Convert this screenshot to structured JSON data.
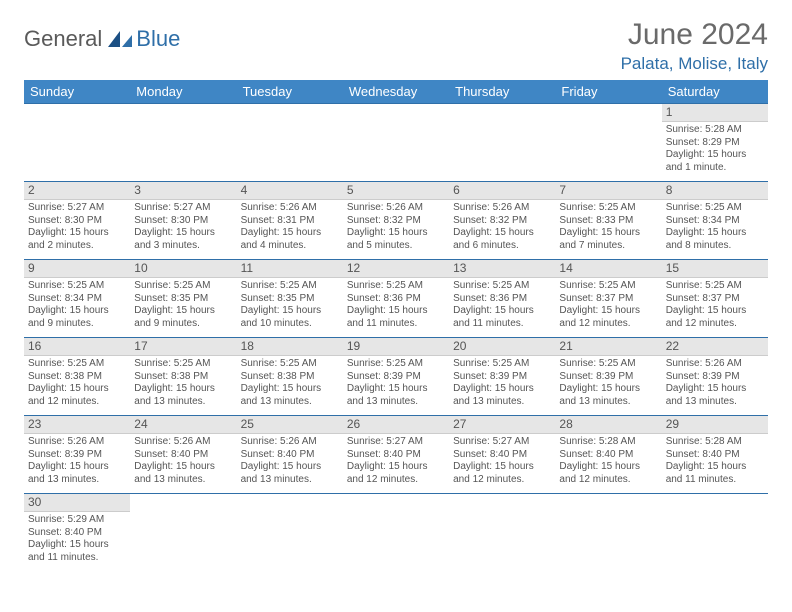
{
  "logo": {
    "text1": "General",
    "text2": "Blue"
  },
  "title": "June 2024",
  "location": "Palata, Molise, Italy",
  "colors": {
    "header_bg": "#3f86c5",
    "header_text": "#ffffff",
    "date_bg": "#e6e6e6",
    "row_border": "#2f6fa8",
    "accent": "#2f6fa8",
    "body_text": "#555555"
  },
  "day_headers": [
    "Sunday",
    "Monday",
    "Tuesday",
    "Wednesday",
    "Thursday",
    "Friday",
    "Saturday"
  ],
  "weeks": [
    [
      null,
      null,
      null,
      null,
      null,
      null,
      {
        "d": "1",
        "sr": "Sunrise: 5:28 AM",
        "ss": "Sunset: 8:29 PM",
        "dl": "Daylight: 15 hours and 1 minute."
      }
    ],
    [
      {
        "d": "2",
        "sr": "Sunrise: 5:27 AM",
        "ss": "Sunset: 8:30 PM",
        "dl": "Daylight: 15 hours and 2 minutes."
      },
      {
        "d": "3",
        "sr": "Sunrise: 5:27 AM",
        "ss": "Sunset: 8:30 PM",
        "dl": "Daylight: 15 hours and 3 minutes."
      },
      {
        "d": "4",
        "sr": "Sunrise: 5:26 AM",
        "ss": "Sunset: 8:31 PM",
        "dl": "Daylight: 15 hours and 4 minutes."
      },
      {
        "d": "5",
        "sr": "Sunrise: 5:26 AM",
        "ss": "Sunset: 8:32 PM",
        "dl": "Daylight: 15 hours and 5 minutes."
      },
      {
        "d": "6",
        "sr": "Sunrise: 5:26 AM",
        "ss": "Sunset: 8:32 PM",
        "dl": "Daylight: 15 hours and 6 minutes."
      },
      {
        "d": "7",
        "sr": "Sunrise: 5:25 AM",
        "ss": "Sunset: 8:33 PM",
        "dl": "Daylight: 15 hours and 7 minutes."
      },
      {
        "d": "8",
        "sr": "Sunrise: 5:25 AM",
        "ss": "Sunset: 8:34 PM",
        "dl": "Daylight: 15 hours and 8 minutes."
      }
    ],
    [
      {
        "d": "9",
        "sr": "Sunrise: 5:25 AM",
        "ss": "Sunset: 8:34 PM",
        "dl": "Daylight: 15 hours and 9 minutes."
      },
      {
        "d": "10",
        "sr": "Sunrise: 5:25 AM",
        "ss": "Sunset: 8:35 PM",
        "dl": "Daylight: 15 hours and 9 minutes."
      },
      {
        "d": "11",
        "sr": "Sunrise: 5:25 AM",
        "ss": "Sunset: 8:35 PM",
        "dl": "Daylight: 15 hours and 10 minutes."
      },
      {
        "d": "12",
        "sr": "Sunrise: 5:25 AM",
        "ss": "Sunset: 8:36 PM",
        "dl": "Daylight: 15 hours and 11 minutes."
      },
      {
        "d": "13",
        "sr": "Sunrise: 5:25 AM",
        "ss": "Sunset: 8:36 PM",
        "dl": "Daylight: 15 hours and 11 minutes."
      },
      {
        "d": "14",
        "sr": "Sunrise: 5:25 AM",
        "ss": "Sunset: 8:37 PM",
        "dl": "Daylight: 15 hours and 12 minutes."
      },
      {
        "d": "15",
        "sr": "Sunrise: 5:25 AM",
        "ss": "Sunset: 8:37 PM",
        "dl": "Daylight: 15 hours and 12 minutes."
      }
    ],
    [
      {
        "d": "16",
        "sr": "Sunrise: 5:25 AM",
        "ss": "Sunset: 8:38 PM",
        "dl": "Daylight: 15 hours and 12 minutes."
      },
      {
        "d": "17",
        "sr": "Sunrise: 5:25 AM",
        "ss": "Sunset: 8:38 PM",
        "dl": "Daylight: 15 hours and 13 minutes."
      },
      {
        "d": "18",
        "sr": "Sunrise: 5:25 AM",
        "ss": "Sunset: 8:38 PM",
        "dl": "Daylight: 15 hours and 13 minutes."
      },
      {
        "d": "19",
        "sr": "Sunrise: 5:25 AM",
        "ss": "Sunset: 8:39 PM",
        "dl": "Daylight: 15 hours and 13 minutes."
      },
      {
        "d": "20",
        "sr": "Sunrise: 5:25 AM",
        "ss": "Sunset: 8:39 PM",
        "dl": "Daylight: 15 hours and 13 minutes."
      },
      {
        "d": "21",
        "sr": "Sunrise: 5:25 AM",
        "ss": "Sunset: 8:39 PM",
        "dl": "Daylight: 15 hours and 13 minutes."
      },
      {
        "d": "22",
        "sr": "Sunrise: 5:26 AM",
        "ss": "Sunset: 8:39 PM",
        "dl": "Daylight: 15 hours and 13 minutes."
      }
    ],
    [
      {
        "d": "23",
        "sr": "Sunrise: 5:26 AM",
        "ss": "Sunset: 8:39 PM",
        "dl": "Daylight: 15 hours and 13 minutes."
      },
      {
        "d": "24",
        "sr": "Sunrise: 5:26 AM",
        "ss": "Sunset: 8:40 PM",
        "dl": "Daylight: 15 hours and 13 minutes."
      },
      {
        "d": "25",
        "sr": "Sunrise: 5:26 AM",
        "ss": "Sunset: 8:40 PM",
        "dl": "Daylight: 15 hours and 13 minutes."
      },
      {
        "d": "26",
        "sr": "Sunrise: 5:27 AM",
        "ss": "Sunset: 8:40 PM",
        "dl": "Daylight: 15 hours and 12 minutes."
      },
      {
        "d": "27",
        "sr": "Sunrise: 5:27 AM",
        "ss": "Sunset: 8:40 PM",
        "dl": "Daylight: 15 hours and 12 minutes."
      },
      {
        "d": "28",
        "sr": "Sunrise: 5:28 AM",
        "ss": "Sunset: 8:40 PM",
        "dl": "Daylight: 15 hours and 12 minutes."
      },
      {
        "d": "29",
        "sr": "Sunrise: 5:28 AM",
        "ss": "Sunset: 8:40 PM",
        "dl": "Daylight: 15 hours and 11 minutes."
      }
    ],
    [
      {
        "d": "30",
        "sr": "Sunrise: 5:29 AM",
        "ss": "Sunset: 8:40 PM",
        "dl": "Daylight: 15 hours and 11 minutes."
      },
      null,
      null,
      null,
      null,
      null,
      null
    ]
  ]
}
